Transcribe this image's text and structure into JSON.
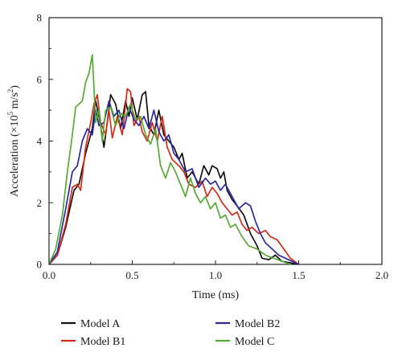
{
  "chart_data": {
    "type": "line",
    "xlabel": "Time (ms)",
    "ylabel": "Acceleration (×10⁵ m/s²)",
    "ylabel_parts": {
      "main": "Acceleration (×10",
      "sup1": "5",
      "mid": " m/s",
      "sup2": "2",
      "end": ")"
    },
    "xlim": [
      0,
      2.0
    ],
    "ylim": [
      0,
      8
    ],
    "xticks": [
      0,
      0.5,
      1.0,
      1.5,
      2.0
    ],
    "xtick_labels": [
      "0.0",
      "0.5",
      "1.0",
      "1.5",
      "2.0"
    ],
    "yticks": [
      0,
      2,
      4,
      6,
      8
    ],
    "ytick_labels": [
      "0",
      "2",
      "4",
      "6",
      "8"
    ],
    "grid": false,
    "legend_position": "bottom",
    "series": [
      {
        "name": "Model A",
        "color": "#111111",
        "points": [
          [
            0,
            0
          ],
          [
            0.05,
            0.3
          ],
          [
            0.1,
            1.2
          ],
          [
            0.15,
            2.4
          ],
          [
            0.18,
            2.6
          ],
          [
            0.22,
            3.6
          ],
          [
            0.26,
            4.4
          ],
          [
            0.28,
            5.3
          ],
          [
            0.3,
            4.8
          ],
          [
            0.33,
            3.8
          ],
          [
            0.35,
            4.6
          ],
          [
            0.37,
            5.5
          ],
          [
            0.4,
            5.2
          ],
          [
            0.43,
            4.4
          ],
          [
            0.46,
            5.3
          ],
          [
            0.48,
            4.8
          ],
          [
            0.5,
            5.4
          ],
          [
            0.53,
            4.7
          ],
          [
            0.56,
            5.5
          ],
          [
            0.58,
            5.6
          ],
          [
            0.6,
            4.5
          ],
          [
            0.63,
            4.2
          ],
          [
            0.66,
            5.0
          ],
          [
            0.69,
            4.2
          ],
          [
            0.72,
            4.0
          ],
          [
            0.75,
            3.8
          ],
          [
            0.78,
            3.4
          ],
          [
            0.8,
            3.6
          ],
          [
            0.83,
            2.8
          ],
          [
            0.86,
            3.0
          ],
          [
            0.9,
            2.6
          ],
          [
            0.93,
            3.2
          ],
          [
            0.96,
            2.9
          ],
          [
            0.98,
            3.2
          ],
          [
            1.01,
            3.1
          ],
          [
            1.03,
            2.8
          ],
          [
            1.05,
            3.0
          ],
          [
            1.07,
            2.4
          ],
          [
            1.1,
            2.1
          ],
          [
            1.13,
            1.9
          ],
          [
            1.17,
            1.6
          ],
          [
            1.21,
            1.0
          ],
          [
            1.25,
            0.6
          ],
          [
            1.28,
            0.2
          ],
          [
            1.32,
            0.15
          ],
          [
            1.36,
            0.3
          ],
          [
            1.4,
            0.1
          ],
          [
            1.45,
            0.05
          ],
          [
            1.5,
            0
          ]
        ]
      },
      {
        "name": "Model B1",
        "color": "#d42b18",
        "points": [
          [
            0,
            0
          ],
          [
            0.05,
            0.3
          ],
          [
            0.1,
            1.3
          ],
          [
            0.14,
            2.5
          ],
          [
            0.17,
            2.6
          ],
          [
            0.19,
            2.4
          ],
          [
            0.22,
            3.8
          ],
          [
            0.25,
            4.6
          ],
          [
            0.27,
            5.2
          ],
          [
            0.29,
            5.5
          ],
          [
            0.31,
            4.6
          ],
          [
            0.34,
            4.2
          ],
          [
            0.36,
            5.0
          ],
          [
            0.38,
            4.1
          ],
          [
            0.41,
            4.8
          ],
          [
            0.44,
            4.2
          ],
          [
            0.47,
            5.7
          ],
          [
            0.49,
            5.6
          ],
          [
            0.51,
            4.5
          ],
          [
            0.54,
            4.8
          ],
          [
            0.56,
            4.3
          ],
          [
            0.59,
            4.0
          ],
          [
            0.62,
            4.6
          ],
          [
            0.65,
            4.0
          ],
          [
            0.68,
            4.8
          ],
          [
            0.71,
            3.8
          ],
          [
            0.74,
            3.4
          ],
          [
            0.78,
            3.2
          ],
          [
            0.81,
            3.0
          ],
          [
            0.84,
            2.6
          ],
          [
            0.88,
            2.5
          ],
          [
            0.92,
            2.7
          ],
          [
            0.95,
            2.2
          ],
          [
            0.98,
            2.5
          ],
          [
            1.01,
            2.3
          ],
          [
            1.04,
            2.0
          ],
          [
            1.07,
            1.8
          ],
          [
            1.1,
            1.6
          ],
          [
            1.13,
            1.7
          ],
          [
            1.16,
            1.3
          ],
          [
            1.19,
            1.1
          ],
          [
            1.22,
            1.2
          ],
          [
            1.26,
            1.0
          ],
          [
            1.3,
            1.1
          ],
          [
            1.33,
            0.9
          ],
          [
            1.37,
            0.8
          ],
          [
            1.41,
            0.5
          ],
          [
            1.45,
            0.2
          ],
          [
            1.5,
            0
          ]
        ]
      },
      {
        "name": "Model B2",
        "color": "#2a2aa0",
        "points": [
          [
            0,
            0
          ],
          [
            0.05,
            0.4
          ],
          [
            0.1,
            1.8
          ],
          [
            0.14,
            3.0
          ],
          [
            0.17,
            3.2
          ],
          [
            0.2,
            4.0
          ],
          [
            0.23,
            4.4
          ],
          [
            0.26,
            4.2
          ],
          [
            0.28,
            5.0
          ],
          [
            0.3,
            4.5
          ],
          [
            0.33,
            4.6
          ],
          [
            0.36,
            5.3
          ],
          [
            0.39,
            4.8
          ],
          [
            0.42,
            5.0
          ],
          [
            0.45,
            4.4
          ],
          [
            0.48,
            5.1
          ],
          [
            0.51,
            4.7
          ],
          [
            0.54,
            4.5
          ],
          [
            0.57,
            4.8
          ],
          [
            0.6,
            4.4
          ],
          [
            0.63,
            5.0
          ],
          [
            0.66,
            4.3
          ],
          [
            0.69,
            4.0
          ],
          [
            0.72,
            4.2
          ],
          [
            0.75,
            3.6
          ],
          [
            0.78,
            3.4
          ],
          [
            0.82,
            3.0
          ],
          [
            0.86,
            3.1
          ],
          [
            0.9,
            2.5
          ],
          [
            0.94,
            2.8
          ],
          [
            0.97,
            2.6
          ],
          [
            1.0,
            2.7
          ],
          [
            1.03,
            2.4
          ],
          [
            1.06,
            2.6
          ],
          [
            1.1,
            2.2
          ],
          [
            1.14,
            1.8
          ],
          [
            1.18,
            2.0
          ],
          [
            1.21,
            1.9
          ],
          [
            1.24,
            1.4
          ],
          [
            1.27,
            1.0
          ],
          [
            1.3,
            0.7
          ],
          [
            1.34,
            0.5
          ],
          [
            1.38,
            0.3
          ],
          [
            1.42,
            0.2
          ],
          [
            1.46,
            0.1
          ],
          [
            1.5,
            0
          ]
        ]
      },
      {
        "name": "Model C",
        "color": "#55aa33",
        "points": [
          [
            0,
            0
          ],
          [
            0.04,
            0.5
          ],
          [
            0.08,
            1.6
          ],
          [
            0.11,
            3.0
          ],
          [
            0.14,
            4.2
          ],
          [
            0.16,
            5.1
          ],
          [
            0.18,
            5.2
          ],
          [
            0.2,
            5.3
          ],
          [
            0.22,
            5.9
          ],
          [
            0.24,
            6.2
          ],
          [
            0.26,
            6.8
          ],
          [
            0.28,
            4.6
          ],
          [
            0.3,
            5.0
          ],
          [
            0.32,
            4.0
          ],
          [
            0.34,
            5.0
          ],
          [
            0.37,
            5.1
          ],
          [
            0.4,
            4.5
          ],
          [
            0.43,
            4.9
          ],
          [
            0.46,
            4.8
          ],
          [
            0.49,
            5.2
          ],
          [
            0.52,
            4.7
          ],
          [
            0.55,
            4.8
          ],
          [
            0.58,
            4.2
          ],
          [
            0.61,
            3.9
          ],
          [
            0.64,
            4.4
          ],
          [
            0.67,
            3.2
          ],
          [
            0.7,
            2.8
          ],
          [
            0.73,
            3.3
          ],
          [
            0.76,
            3.0
          ],
          [
            0.79,
            2.6
          ],
          [
            0.82,
            2.2
          ],
          [
            0.85,
            2.8
          ],
          [
            0.88,
            2.3
          ],
          [
            0.91,
            2.0
          ],
          [
            0.94,
            2.2
          ],
          [
            0.97,
            1.8
          ],
          [
            1.0,
            2.0
          ],
          [
            1.03,
            1.5
          ],
          [
            1.06,
            1.6
          ],
          [
            1.09,
            1.2
          ],
          [
            1.12,
            1.3
          ],
          [
            1.16,
            0.9
          ],
          [
            1.2,
            0.6
          ],
          [
            1.25,
            0.5
          ],
          [
            1.3,
            0.3
          ],
          [
            1.35,
            0.2
          ],
          [
            1.4,
            0.1
          ],
          [
            1.45,
            0
          ]
        ]
      }
    ]
  }
}
